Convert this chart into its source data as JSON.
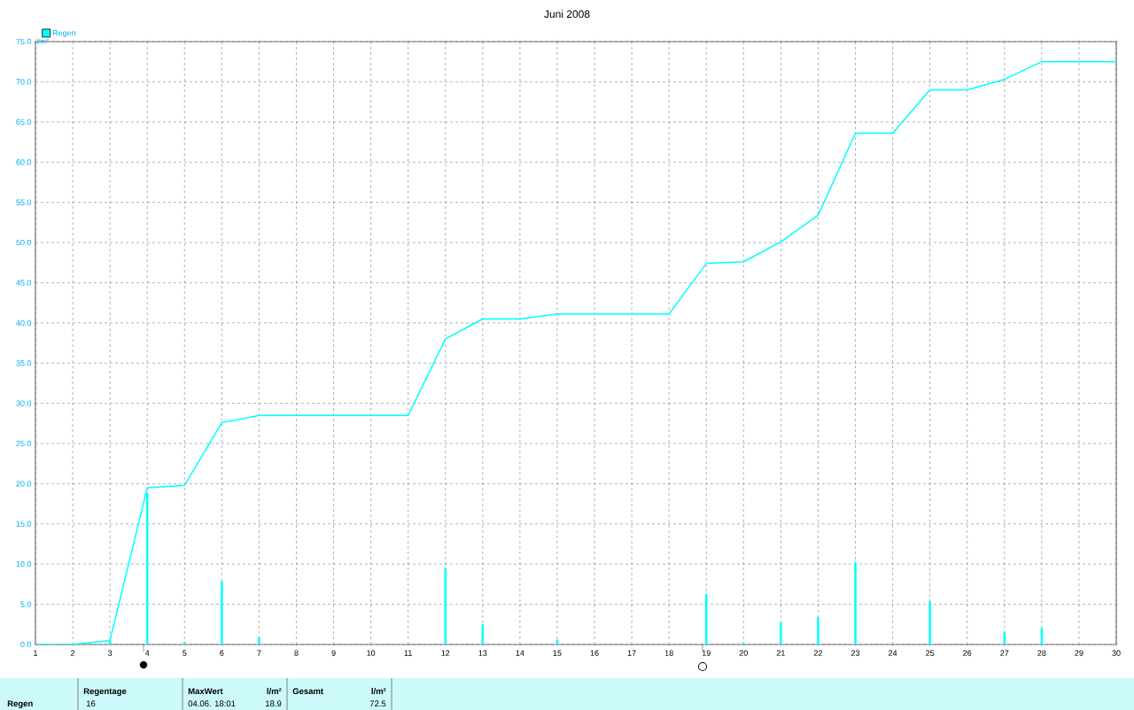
{
  "chart_data": {
    "type": "line",
    "title": "Juni 2008",
    "ylabel": "l/m²",
    "x": [
      1,
      2,
      3,
      4,
      5,
      6,
      7,
      8,
      9,
      10,
      11,
      12,
      13,
      14,
      15,
      16,
      17,
      18,
      19,
      20,
      21,
      22,
      23,
      24,
      25,
      26,
      27,
      28,
      29,
      30
    ],
    "series": [
      {
        "name": "Regen",
        "color": "#00ffff",
        "values": [
          0,
          0,
          0.5,
          19.5,
          19.8,
          27.6,
          28.5,
          28.5,
          28.5,
          28.5,
          28.5,
          38.0,
          40.5,
          40.5,
          41.1,
          41.1,
          41.1,
          41.1,
          47.4,
          47.6,
          50.1,
          53.4,
          63.6,
          63.6,
          69.0,
          69.0,
          70.3,
          72.5,
          72.5,
          72.5
        ]
      },
      {
        "type": "bar",
        "color": "#00ffff",
        "x": [
          3,
          4,
          5,
          6,
          7,
          12,
          13,
          15,
          19,
          20,
          21,
          22,
          23,
          25,
          27,
          28
        ],
        "values": [
          0.5,
          18.9,
          0.3,
          7.9,
          0.9,
          9.5,
          2.5,
          0.6,
          6.3,
          0.2,
          2.7,
          3.4,
          10.2,
          5.4,
          1.6,
          2.1
        ]
      }
    ],
    "xlim": [
      1,
      30
    ],
    "xticks": [
      1,
      2,
      3,
      4,
      5,
      6,
      7,
      8,
      9,
      10,
      11,
      12,
      13,
      14,
      15,
      16,
      17,
      18,
      19,
      20,
      21,
      22,
      23,
      24,
      25,
      26,
      27,
      28,
      29,
      30
    ],
    "ylim": [
      0,
      75
    ],
    "yticks": [
      {
        "value": 0,
        "label": "0.0"
      },
      {
        "value": 5,
        "label": "5.0"
      },
      {
        "value": 10,
        "label": "10.0"
      },
      {
        "value": 15,
        "label": "15.0"
      },
      {
        "value": 20,
        "label": "20.0"
      },
      {
        "value": 25,
        "label": "25.0"
      },
      {
        "value": 30,
        "label": "30.0"
      },
      {
        "value": 35,
        "label": "35.0"
      },
      {
        "value": 40,
        "label": "40.0"
      },
      {
        "value": 45,
        "label": "45.0"
      },
      {
        "value": 50,
        "label": "50.0"
      },
      {
        "value": 55,
        "label": "55.0"
      },
      {
        "value": 60,
        "label": "60.0"
      },
      {
        "value": 65,
        "label": "65.0"
      },
      {
        "value": 70,
        "label": "70.0"
      },
      {
        "value": 75,
        "label": "75.0"
      }
    ],
    "grid": true,
    "legend": "top left",
    "line_style": "solid",
    "marker": "none",
    "annotations": [
      "Regen",
      "Regentage",
      "16",
      "MaxWert",
      "l/m²",
      "04.06.  18:01",
      "18.9",
      "Gesamt",
      "l/m²",
      "72.5"
    ]
  }
}
